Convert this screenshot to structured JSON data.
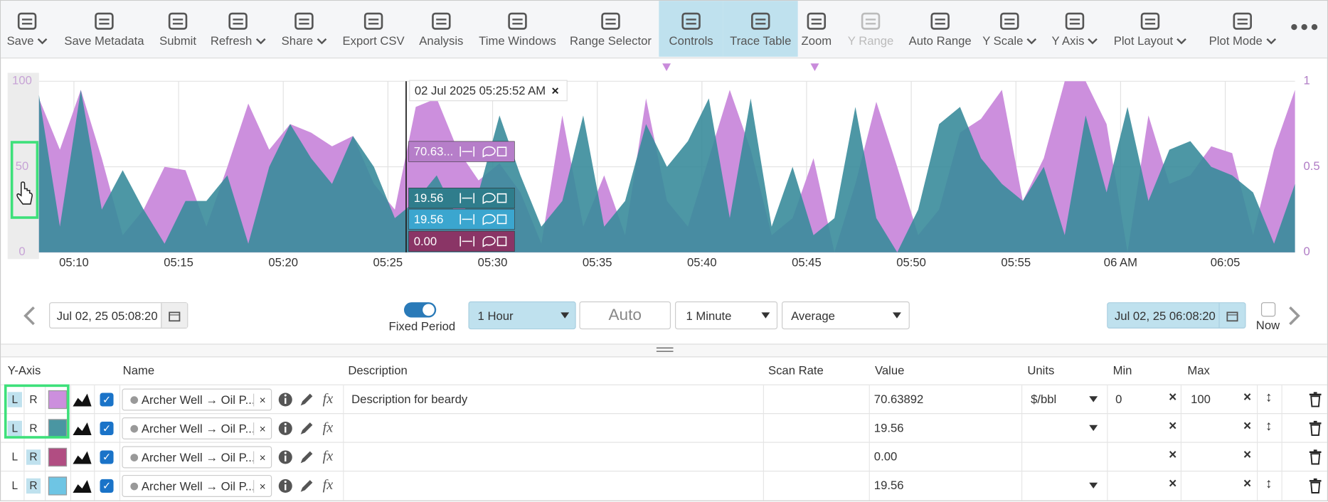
{
  "toolbar": {
    "items": [
      {
        "label": "Save",
        "dropdown": true
      },
      {
        "label": "Save Metadata"
      },
      {
        "label": "Submit"
      },
      {
        "label": "Refresh",
        "dropdown": true
      },
      {
        "label": "Share",
        "dropdown": true
      },
      {
        "label": "Export CSV"
      },
      {
        "label": "Analysis"
      },
      {
        "label": "Time Windows"
      },
      {
        "label": "Range Selector"
      },
      {
        "label": "Controls",
        "active": true
      },
      {
        "label": "Trace Table",
        "active": true
      },
      {
        "label": "Zoom"
      },
      {
        "label": "Y Range",
        "disabled": true
      },
      {
        "label": "Auto Range"
      },
      {
        "label": "Y Scale",
        "dropdown": true
      },
      {
        "label": "Y Axis",
        "dropdown": true
      },
      {
        "label": "Plot Layout",
        "dropdown": true
      },
      {
        "label": "Plot Mode",
        "dropdown": true
      }
    ]
  },
  "chart_data": {
    "type": "area",
    "x": [
      308.33,
      309.33,
      310.33,
      311.33,
      312.33,
      313.33,
      314.33,
      315.33,
      316.33,
      317.33,
      318.33,
      319.33,
      320.33,
      321.33,
      322.33,
      323.33,
      324.33,
      325.33,
      326.33,
      327.33,
      328.33,
      329.33,
      330.33,
      331.33,
      332.33,
      333.33,
      334.33,
      335.33,
      336.33,
      337.33,
      338.33,
      339.33,
      340.33,
      341.33,
      342.33,
      343.33,
      344.33,
      345.33,
      346.33,
      347.33,
      348.33,
      349.33,
      350.33,
      351.33,
      352.33,
      353.33,
      354.33,
      355.33,
      356.33,
      357.33,
      358.33,
      359.33,
      360.33,
      361.33,
      362.33,
      363.33,
      364.33,
      365.33,
      366.33,
      367.33,
      368.33
    ],
    "xlim": [
      308.33,
      368.33
    ],
    "xticks": [
      {
        "value": 310,
        "label": "05:10"
      },
      {
        "value": 315,
        "label": "05:15"
      },
      {
        "value": 320,
        "label": "05:20"
      },
      {
        "value": 325,
        "label": "05:25"
      },
      {
        "value": 330,
        "label": "05:30"
      },
      {
        "value": 335,
        "label": "05:35"
      },
      {
        "value": 340,
        "label": "05:40"
      },
      {
        "value": 345,
        "label": "05:45"
      },
      {
        "value": 350,
        "label": "05:50"
      },
      {
        "value": 355,
        "label": "05:55"
      },
      {
        "value": 360,
        "label": "06 AM"
      },
      {
        "value": 365,
        "label": "06:05"
      }
    ],
    "ylim": [
      0,
      100
    ],
    "yticks": [
      0,
      50,
      100
    ],
    "y2lim": [
      0,
      1
    ],
    "y2ticks": [
      0,
      0.5,
      1
    ],
    "grid": true,
    "series": [
      {
        "color": "#cc8fdd",
        "values": [
          90,
          60,
          95,
          55,
          10,
          25,
          50,
          48,
          15,
          50,
          87,
          60,
          75,
          70,
          62,
          68,
          40,
          25,
          85,
          90,
          60,
          42,
          52,
          35,
          5,
          80,
          15,
          45,
          10,
          90,
          30,
          15,
          55,
          95,
          60,
          10,
          20,
          55,
          0,
          40,
          88,
          50,
          10,
          25,
          70,
          78,
          95,
          30,
          55,
          100,
          100,
          75,
          0,
          80,
          40,
          45,
          62,
          58,
          10,
          60,
          95
        ]
      },
      {
        "color": "#3a8c9b",
        "values": [
          92,
          15,
          95,
          25,
          48,
          25,
          5,
          30,
          30,
          45,
          5,
          50,
          75,
          55,
          40,
          68,
          50,
          20,
          30,
          45,
          20,
          35,
          80,
          45,
          15,
          30,
          80,
          15,
          30,
          75,
          50,
          65,
          90,
          20,
          90,
          15,
          50,
          10,
          20,
          85,
          20,
          0,
          25,
          75,
          85,
          55,
          40,
          30,
          50,
          10,
          80,
          35,
          85,
          30,
          60,
          65,
          50,
          45,
          35,
          5,
          40
        ]
      }
    ],
    "cursor": {
      "x": 325.87,
      "label": "02 Jul 2025 05:25:52 AM",
      "values": [
        {
          "label": "70.63...",
          "color": "#b67ec9"
        },
        {
          "label": "19.56",
          "color": "#2f7d8c"
        },
        {
          "label": "19.56",
          "color": "#3ba6cf"
        },
        {
          "label": "0.00",
          "color": "#8a3566"
        }
      ]
    }
  },
  "controls": {
    "start": "Jul 02, 25 05:08:20",
    "fixed_period": "Fixed Period",
    "period": "1 Hour",
    "auto": "Auto",
    "interval": "1 Minute",
    "aggregate": "Average",
    "end": "Jul 02, 25 06:08:20",
    "now": "Now"
  },
  "table": {
    "headers": [
      "Y-Axis",
      "Name",
      "Description",
      "Scan Rate",
      "Value",
      "Units",
      "Min",
      "Max"
    ],
    "axis_labels": [
      "L",
      "R"
    ],
    "rows": [
      {
        "axis": "L",
        "color": "#cc8fdd",
        "name": "Archer Well → Oil P...",
        "description": "Description for beardy",
        "value": "70.63892",
        "units": "$/bbl",
        "units_dropdown": true,
        "min": "0",
        "max": "100",
        "range_arrow": true
      },
      {
        "axis": "L",
        "color": "#4a96a2",
        "name": "Archer Well → Oil P...",
        "value": "19.56",
        "units_dropdown": true,
        "range_arrow": true
      },
      {
        "axis": "R",
        "color": "#b14d82",
        "name": "Archer Well → Oil P...",
        "value": "0.00"
      },
      {
        "axis": "R",
        "color": "#6ec5e4",
        "name": "Archer Well → Oil P...",
        "value": "19.56",
        "units_dropdown": true,
        "range_arrow": true
      }
    ]
  }
}
